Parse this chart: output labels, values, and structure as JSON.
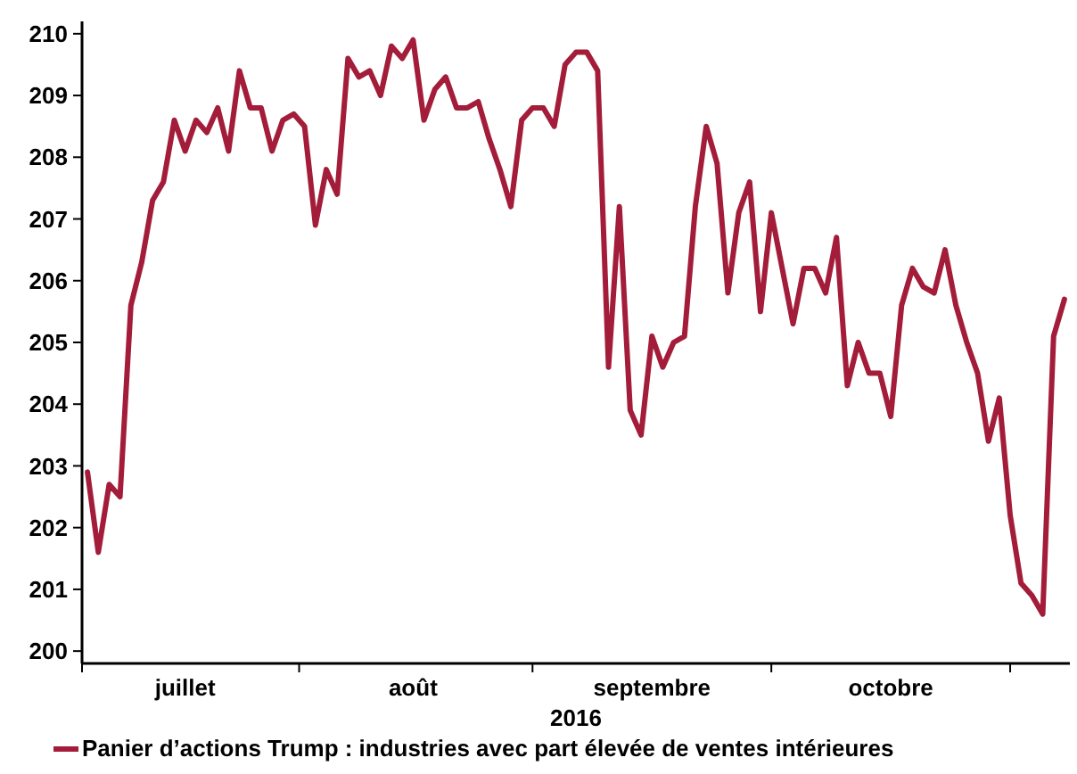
{
  "chart_data": {
    "type": "line",
    "xlabel": "2016",
    "legend": "bottom",
    "grid": false,
    "line_style": "solid",
    "marker": "none",
    "categories": [
      null,
      null,
      null,
      null,
      null,
      null,
      null,
      null,
      null,
      "juillet",
      null,
      null,
      null,
      null,
      null,
      null,
      null,
      null,
      null,
      null,
      null,
      null,
      null,
      null,
      null,
      null,
      null,
      null,
      null,
      null,
      "août",
      null,
      null,
      null,
      null,
      null,
      null,
      null,
      null,
      null,
      null,
      null,
      null,
      null,
      null,
      null,
      null,
      null,
      null,
      null,
      null,
      null,
      "septembre",
      null,
      null,
      null,
      null,
      null,
      null,
      null,
      null,
      null,
      null,
      null,
      null,
      null,
      null,
      null,
      null,
      null,
      null,
      null,
      null,
      null,
      "octobre",
      null,
      null,
      null,
      null,
      null,
      null,
      null,
      null,
      null,
      null,
      null,
      null,
      null,
      null,
      null,
      null
    ],
    "ylim": [
      199.8,
      210.2
    ],
    "yticks": [
      200,
      201,
      202,
      203,
      204,
      205,
      206,
      207,
      208,
      209,
      210
    ],
    "series": [
      {
        "name": "Panier d’actions Trump : industries avec part élevée de ventes intérieures",
        "color": "#a31d3a",
        "values": [
          202.9,
          201.6,
          202.7,
          202.5,
          205.6,
          206.3,
          207.3,
          207.6,
          208.6,
          208.1,
          208.6,
          208.4,
          208.8,
          208.1,
          209.4,
          208.8,
          208.8,
          208.1,
          208.6,
          208.7,
          208.5,
          206.9,
          207.8,
          207.4,
          209.6,
          209.3,
          209.4,
          209.0,
          209.8,
          209.6,
          209.9,
          208.6,
          209.1,
          209.3,
          208.8,
          208.8,
          208.9,
          208.3,
          207.8,
          207.2,
          208.6,
          208.8,
          208.8,
          208.5,
          209.5,
          209.7,
          209.7,
          209.4,
          204.6,
          207.2,
          203.9,
          203.5,
          205.1,
          204.6,
          205.0,
          205.1,
          207.2,
          208.5,
          207.9,
          205.8,
          207.1,
          207.6,
          205.5,
          207.1,
          206.2,
          205.3,
          206.2,
          206.2,
          205.8,
          206.7,
          204.3,
          205.0,
          204.5,
          204.5,
          203.8,
          205.6,
          206.2,
          205.9,
          205.8,
          206.5,
          205.6,
          205.0,
          204.5,
          203.4,
          204.1,
          202.2,
          201.1,
          200.9,
          200.6,
          205.1,
          205.7
        ]
      }
    ]
  }
}
